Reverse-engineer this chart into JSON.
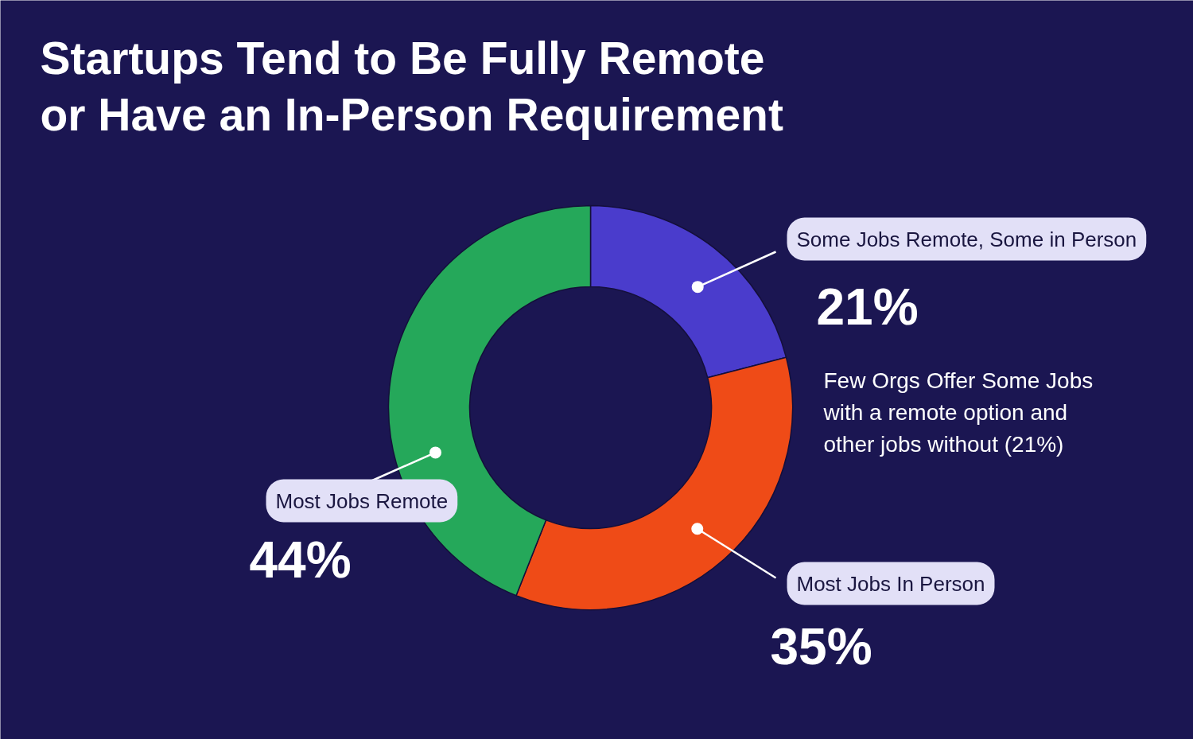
{
  "chart_data": {
    "type": "donut",
    "title": "Startups Tend to Be Fully Remote or Have an In-Person Requirement",
    "categories": [
      "Some Jobs Remote, Some in Person",
      "Most Jobs In Person",
      "Most Jobs Remote"
    ],
    "values": [
      21,
      35,
      44
    ],
    "colors": [
      "#4a3ccc",
      "#ef4b17",
      "#25a85a"
    ],
    "value_labels": [
      "21%",
      "35%",
      "44%"
    ],
    "annotations": [
      "Few Orgs Offer Some Jobs with a remote option and other jobs without (21%)"
    ]
  }
}
